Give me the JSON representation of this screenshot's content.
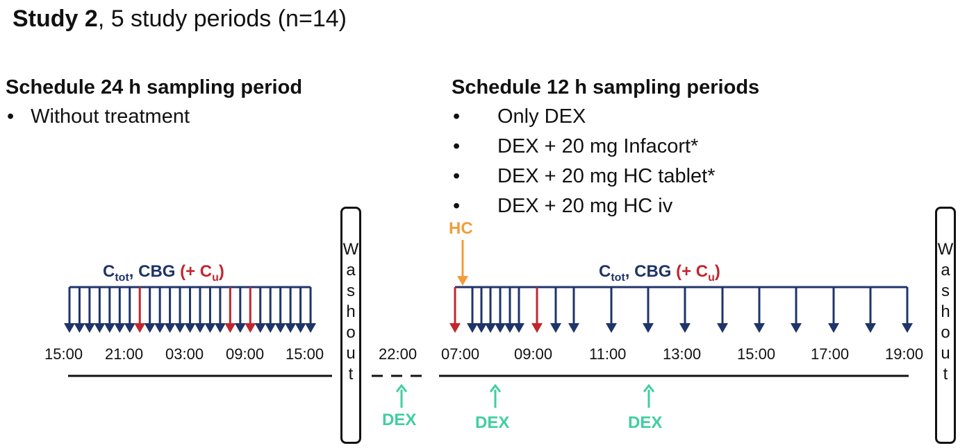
{
  "title": {
    "bold": "Study 2",
    "rest": ", 5 study periods (n=14)"
  },
  "left": {
    "heading": "Schedule 24 h sampling period",
    "items": [
      "Without treatment"
    ],
    "ticks": [
      "15:00",
      "21:00",
      "03:00",
      "09:00",
      "15:00"
    ]
  },
  "right": {
    "heading": "Schedule 12 h sampling periods",
    "items": [
      "Only DEX",
      "DEX + 20 mg Infacort*",
      "DEX + 20 mg HC tablet*",
      "DEX + 20 mg HC iv"
    ],
    "ticks": [
      "07:00",
      "09:00",
      "11:00",
      "13:00",
      "15:00",
      "17:00",
      "19:00"
    ],
    "pre_tick": "22:00"
  },
  "sampling_label": {
    "ctot": "C",
    "ctot_sub": "tot",
    "cbg": ", CBG ",
    "cu_open": "(+ C",
    "cu_sub": "u",
    "cu_close": ")"
  },
  "washout": "Washout",
  "hc_label": "HC",
  "dex_label": "DEX",
  "bullet": "•",
  "colors": {
    "navy": "#1f3468",
    "red": "#c0272d",
    "orange": "#f39c3c",
    "green": "#3fcf9f"
  }
}
